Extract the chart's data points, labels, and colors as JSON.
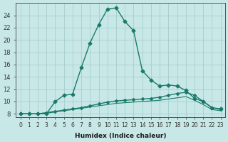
{
  "xlabel": "Humidex (Indice chaleur)",
  "ylabel": "",
  "bg_color": "#c8e8e8",
  "line_color": "#1a7a6a",
  "grid_color": "#a0c8c8",
  "xlim": [
    -0.5,
    23.5
  ],
  "ylim": [
    7.5,
    26
  ],
  "xticks": [
    0,
    1,
    2,
    3,
    4,
    5,
    6,
    7,
    8,
    9,
    10,
    11,
    12,
    13,
    14,
    15,
    16,
    17,
    18,
    19,
    20,
    21,
    22,
    23
  ],
  "yticks": [
    8,
    10,
    12,
    14,
    16,
    18,
    20,
    22,
    24
  ],
  "line1_x": [
    0,
    1,
    2,
    3,
    4,
    5,
    6,
    7,
    8,
    9,
    10,
    11,
    12,
    13,
    14,
    15,
    16,
    17,
    18,
    19,
    20,
    21,
    22,
    23
  ],
  "line1_y": [
    8.0,
    8.0,
    8.0,
    8.0,
    10.0,
    11.0,
    11.2,
    15.5,
    19.5,
    22.5,
    25.0,
    25.2,
    23.0,
    21.5,
    15.0,
    13.5,
    12.5,
    12.7,
    12.5,
    11.8,
    10.5,
    10.0,
    9.0,
    8.8
  ],
  "line2_x": [
    0,
    1,
    2,
    3,
    4,
    5,
    6,
    7,
    8,
    9,
    10,
    11,
    12,
    13,
    14,
    15,
    16,
    17,
    18,
    19,
    20,
    21,
    22,
    23
  ],
  "line2_y": [
    8.0,
    8.0,
    8.0,
    8.2,
    8.4,
    8.6,
    8.8,
    9.0,
    9.3,
    9.6,
    9.9,
    10.1,
    10.2,
    10.3,
    10.4,
    10.5,
    10.7,
    11.0,
    11.3,
    11.5,
    11.0,
    10.0,
    9.0,
    8.7
  ],
  "line3_x": [
    0,
    1,
    2,
    3,
    4,
    5,
    6,
    7,
    8,
    9,
    10,
    11,
    12,
    13,
    14,
    15,
    16,
    17,
    18,
    19,
    20,
    21,
    22,
    23
  ],
  "line3_y": [
    8.0,
    8.0,
    8.0,
    8.1,
    8.3,
    8.5,
    8.7,
    8.9,
    9.1,
    9.3,
    9.5,
    9.7,
    9.8,
    9.9,
    10.0,
    10.1,
    10.2,
    10.4,
    10.6,
    10.8,
    10.2,
    9.5,
    8.7,
    8.5
  ]
}
